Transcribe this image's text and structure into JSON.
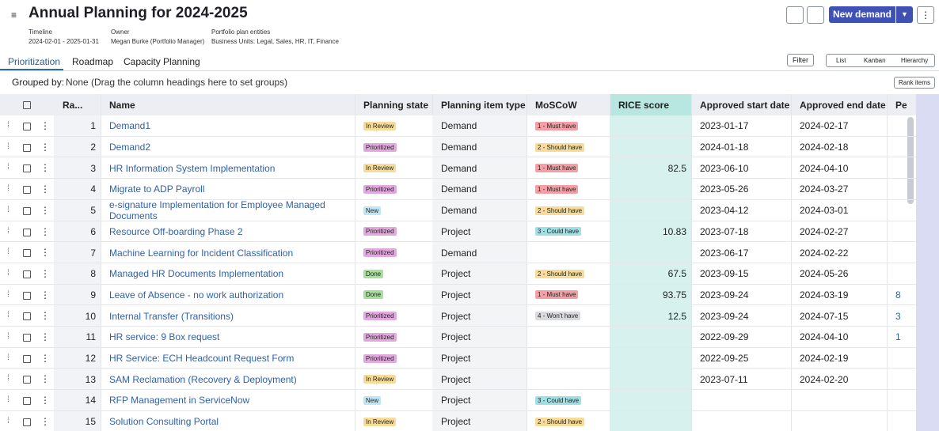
{
  "header": {
    "title": "Annual Planning for 2024-2025",
    "meta": [
      {
        "label": "Timeline",
        "value": "2024-02-01 - 2025-01-31"
      },
      {
        "label": "Owner",
        "value": "Megan Burke (Portfolio Manager)"
      },
      {
        "label": "Portfolio plan entities",
        "value": "Business Units: Legal, Sales, HR, IT, Finance"
      }
    ],
    "new_demand": "New demand"
  },
  "tabs": [
    "Prioritization",
    "Roadmap",
    "Capacity Planning"
  ],
  "toolbar": {
    "filter": "Filter",
    "views": [
      "List",
      "Kanban",
      "Hierarchy"
    ],
    "rank_items": "Rank items"
  },
  "grouped_by": {
    "label": "Grouped by:",
    "value": "None (Drag the column headings here to set groups)"
  },
  "badge_colors": {
    "In Review": "#f6dc98",
    "Prioritized": "#e2a9dc",
    "New": "#bfe6f4",
    "Done": "#a9df9c",
    "1 - Must have": "#f2a0a6",
    "2 - Should have": "#f6dc98",
    "3 - Could have": "#9fe0e6",
    "4 - Won't have": "#d9dadd"
  },
  "table": {
    "columns": [
      "Ra...",
      "Name",
      "Planning state",
      "Planning item type",
      "MoSCoW",
      "RICE score",
      "Approved start date",
      "Approved end date",
      "Pe"
    ],
    "rows": [
      {
        "rank": 1,
        "name": "Demand1",
        "state": "In Review",
        "type": "Demand",
        "moscow": "1 - Must have",
        "rice": null,
        "start": "2023-01-17",
        "end": "2024-02-17",
        "pe": null
      },
      {
        "rank": 2,
        "name": "Demand2",
        "state": "Prioritized",
        "type": "Demand",
        "moscow": "2 - Should have",
        "rice": null,
        "start": "2024-01-18",
        "end": "2024-02-18",
        "pe": null
      },
      {
        "rank": 3,
        "name": "HR Information System Implementation",
        "state": "In Review",
        "type": "Demand",
        "moscow": "1 - Must have",
        "rice": 82.5,
        "start": "2023-06-10",
        "end": "2024-04-10",
        "pe": null
      },
      {
        "rank": 4,
        "name": "Migrate to ADP Payroll",
        "state": "Prioritized",
        "type": "Demand",
        "moscow": "1 - Must have",
        "rice": null,
        "start": "2023-05-26",
        "end": "2024-03-27",
        "pe": null
      },
      {
        "rank": 5,
        "name": "e-signature Implementation for Employee Managed Documents",
        "state": "New",
        "type": "Demand",
        "moscow": "2 - Should have",
        "rice": null,
        "start": "2023-04-12",
        "end": "2024-03-01",
        "pe": null
      },
      {
        "rank": 6,
        "name": "Resource Off-boarding Phase 2",
        "state": "Prioritized",
        "type": "Project",
        "moscow": "3 - Could have",
        "rice": 10.83,
        "start": "2023-07-18",
        "end": "2024-02-27",
        "pe": null
      },
      {
        "rank": 7,
        "name": "Machine Learning for Incident Classification",
        "state": "Prioritized",
        "type": "Demand",
        "moscow": null,
        "rice": null,
        "start": "2023-06-17",
        "end": "2024-02-22",
        "pe": null
      },
      {
        "rank": 8,
        "name": "Managed HR Documents Implementation",
        "state": "Done",
        "type": "Project",
        "moscow": "2 - Should have",
        "rice": 67.5,
        "start": "2023-09-15",
        "end": "2024-05-26",
        "pe": null
      },
      {
        "rank": 9,
        "name": "Leave of Absence - no work authorization",
        "state": "Done",
        "type": "Project",
        "moscow": "1 - Must have",
        "rice": 93.75,
        "start": "2023-09-24",
        "end": "2024-03-19",
        "pe": "8"
      },
      {
        "rank": 10,
        "name": "Internal Transfer (Transitions)",
        "state": "Prioritized",
        "type": "Project",
        "moscow": "4 - Won't have",
        "rice": 12.5,
        "start": "2023-09-24",
        "end": "2024-07-15",
        "pe": "3"
      },
      {
        "rank": 11,
        "name": "HR service: 9 Box request",
        "state": "Prioritized",
        "type": "Project",
        "moscow": null,
        "rice": null,
        "start": "2022-09-29",
        "end": "2024-04-10",
        "pe": "1"
      },
      {
        "rank": 12,
        "name": "HR Service: ECH Headcount Request Form",
        "state": "Prioritized",
        "type": "Project",
        "moscow": null,
        "rice": null,
        "start": "2022-09-25",
        "end": "2024-02-19",
        "pe": null
      },
      {
        "rank": 13,
        "name": "SAM Reclamation (Recovery & Deployment)",
        "state": "In Review",
        "type": "Project",
        "moscow": null,
        "rice": null,
        "start": "2023-07-11",
        "end": "2024-02-20",
        "pe": null
      },
      {
        "rank": 14,
        "name": "RFP Management in ServiceNow",
        "state": "New",
        "type": "Project",
        "moscow": "3 - Could have",
        "rice": null,
        "start": null,
        "end": null,
        "pe": null
      },
      {
        "rank": 15,
        "name": "Solution Consulting Portal",
        "state": "In Review",
        "type": "Project",
        "moscow": "2 - Should have",
        "rice": null,
        "start": null,
        "end": null,
        "pe": null
      }
    ]
  }
}
